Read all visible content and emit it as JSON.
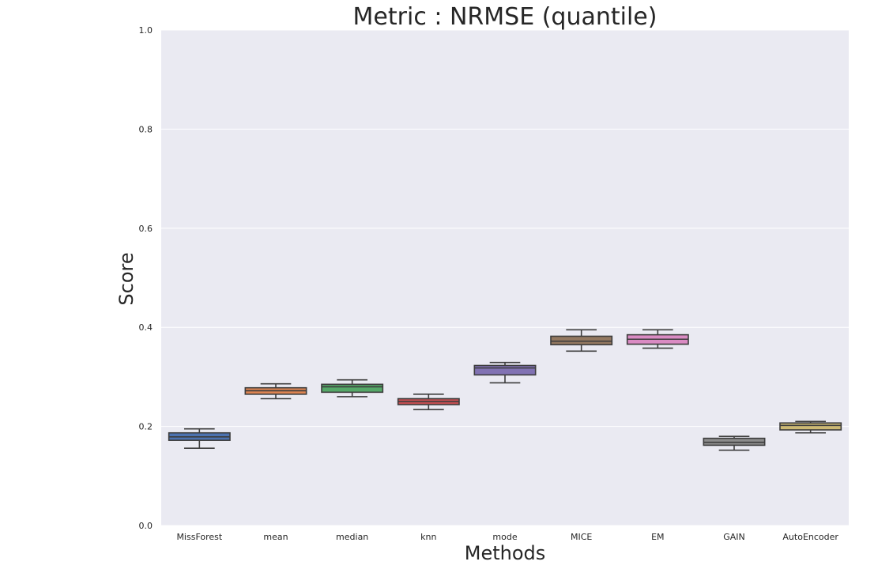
{
  "chart_data": {
    "type": "box",
    "title": "Metric : NRMSE (quantile)",
    "xlabel": "Methods",
    "ylabel": "Score",
    "ylim": [
      0.0,
      1.0
    ],
    "yticks": [
      "0.0",
      "0.2",
      "0.4",
      "0.6",
      "0.8",
      "1.0"
    ],
    "grid": true,
    "categories": [
      "MissForest",
      "mean",
      "median",
      "knn",
      "mode",
      "MICE",
      "EM",
      "GAIN",
      "AutoEncoder"
    ],
    "boxes": [
      {
        "name": "MissForest",
        "whisker_low": 0.156,
        "q1": 0.172,
        "median": 0.179,
        "q3": 0.187,
        "whisker_high": 0.195,
        "color": "#4c72b0"
      },
      {
        "name": "mean",
        "whisker_low": 0.256,
        "q1": 0.265,
        "median": 0.272,
        "q3": 0.278,
        "whisker_high": 0.286,
        "color": "#dd8452"
      },
      {
        "name": "median",
        "whisker_low": 0.26,
        "q1": 0.269,
        "median": 0.28,
        "q3": 0.285,
        "whisker_high": 0.294,
        "color": "#55a868"
      },
      {
        "name": "knn",
        "whisker_low": 0.234,
        "q1": 0.244,
        "median": 0.25,
        "q3": 0.256,
        "whisker_high": 0.265,
        "color": "#c44e52"
      },
      {
        "name": "mode",
        "whisker_low": 0.288,
        "q1": 0.304,
        "median": 0.318,
        "q3": 0.323,
        "whisker_high": 0.329,
        "color": "#8172b3"
      },
      {
        "name": "MICE",
        "whisker_low": 0.352,
        "q1": 0.365,
        "median": 0.372,
        "q3": 0.382,
        "whisker_high": 0.395,
        "color": "#937860"
      },
      {
        "name": "EM",
        "whisker_low": 0.358,
        "q1": 0.366,
        "median": 0.376,
        "q3": 0.385,
        "whisker_high": 0.395,
        "color": "#da8bc3"
      },
      {
        "name": "GAIN",
        "whisker_low": 0.152,
        "q1": 0.162,
        "median": 0.168,
        "q3": 0.176,
        "whisker_high": 0.18,
        "color": "#8c8c8c"
      },
      {
        "name": "AutoEncoder",
        "whisker_low": 0.187,
        "q1": 0.193,
        "median": 0.202,
        "q3": 0.207,
        "whisker_high": 0.21,
        "color": "#ccb974"
      }
    ],
    "colors": {
      "plot_background": "#eaeaf2",
      "grid": "#ffffff",
      "edge": "#3d3d3d"
    }
  }
}
